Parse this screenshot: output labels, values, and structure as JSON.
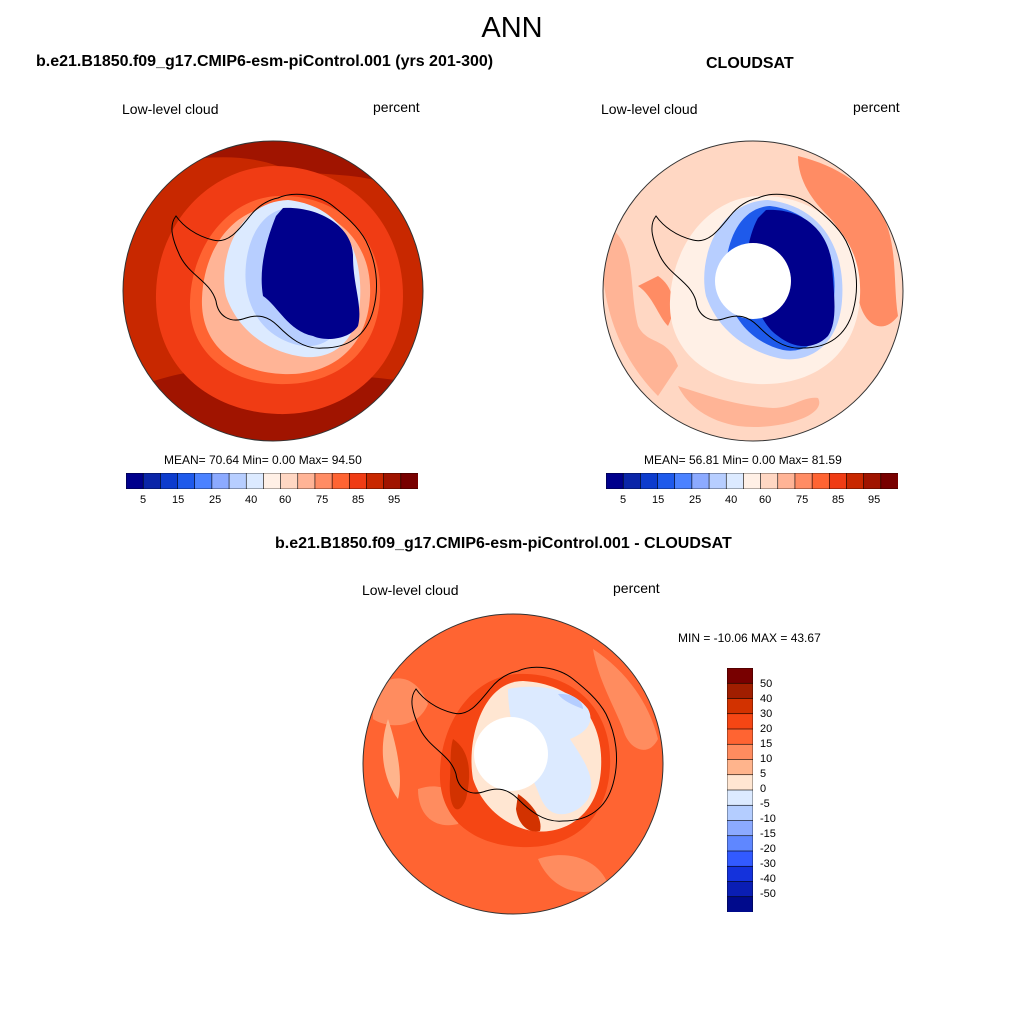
{
  "figure": {
    "main_title": "ANN",
    "panels": [
      {
        "title": "b.e21.B1850.f09_g17.CMIP6-esm-piControl.001 (yrs 201-300)",
        "left_label": "Low-level cloud",
        "right_label": "percent",
        "stats": "MEAN=  70.64  Min=   0.00  Max=  94.50"
      },
      {
        "title": "CLOUDSAT",
        "left_label": "Low-level cloud",
        "right_label": "percent",
        "stats": "MEAN=  56.81  Min=   0.00  Max=  81.59"
      },
      {
        "title": "b.e21.B1850.f09_g17.CMIP6-esm-piControl.001 - CLOUDSAT",
        "left_label": "Low-level cloud",
        "right_label": "percent",
        "stats": "MIN = -10.06 MAX =  43.67"
      }
    ],
    "field_colorbar": {
      "colors": [
        "#00008c",
        "#0a25a8",
        "#0d3ccd",
        "#1e5aeb",
        "#4b82ff",
        "#8caaff",
        "#b7ceff",
        "#dceaff",
        "#fff0e6",
        "#ffd7c3",
        "#ffb496",
        "#ff8c64",
        "#ff6432",
        "#f03c14",
        "#c82800",
        "#a01400",
        "#780000"
      ],
      "tick_labels": [
        "5",
        "15",
        "25",
        "40",
        "60",
        "75",
        "85",
        "95"
      ]
    },
    "diff_colorbar": {
      "colors": [
        "#780000",
        "#a01e00",
        "#d23200",
        "#f54614",
        "#ff6432",
        "#ff8c5f",
        "#ffb48c",
        "#ffe6d2",
        "#dceaff",
        "#b4cdff",
        "#8caaff",
        "#5f87ff",
        "#325aff",
        "#1432dc",
        "#0a1eb4",
        "#000a8c"
      ],
      "tick_labels": [
        "50",
        "40",
        "30",
        "20",
        "15",
        "10",
        "5",
        "0",
        "-5",
        "-10",
        "-15",
        "-20",
        "-30",
        "-40",
        "-50"
      ]
    }
  }
}
